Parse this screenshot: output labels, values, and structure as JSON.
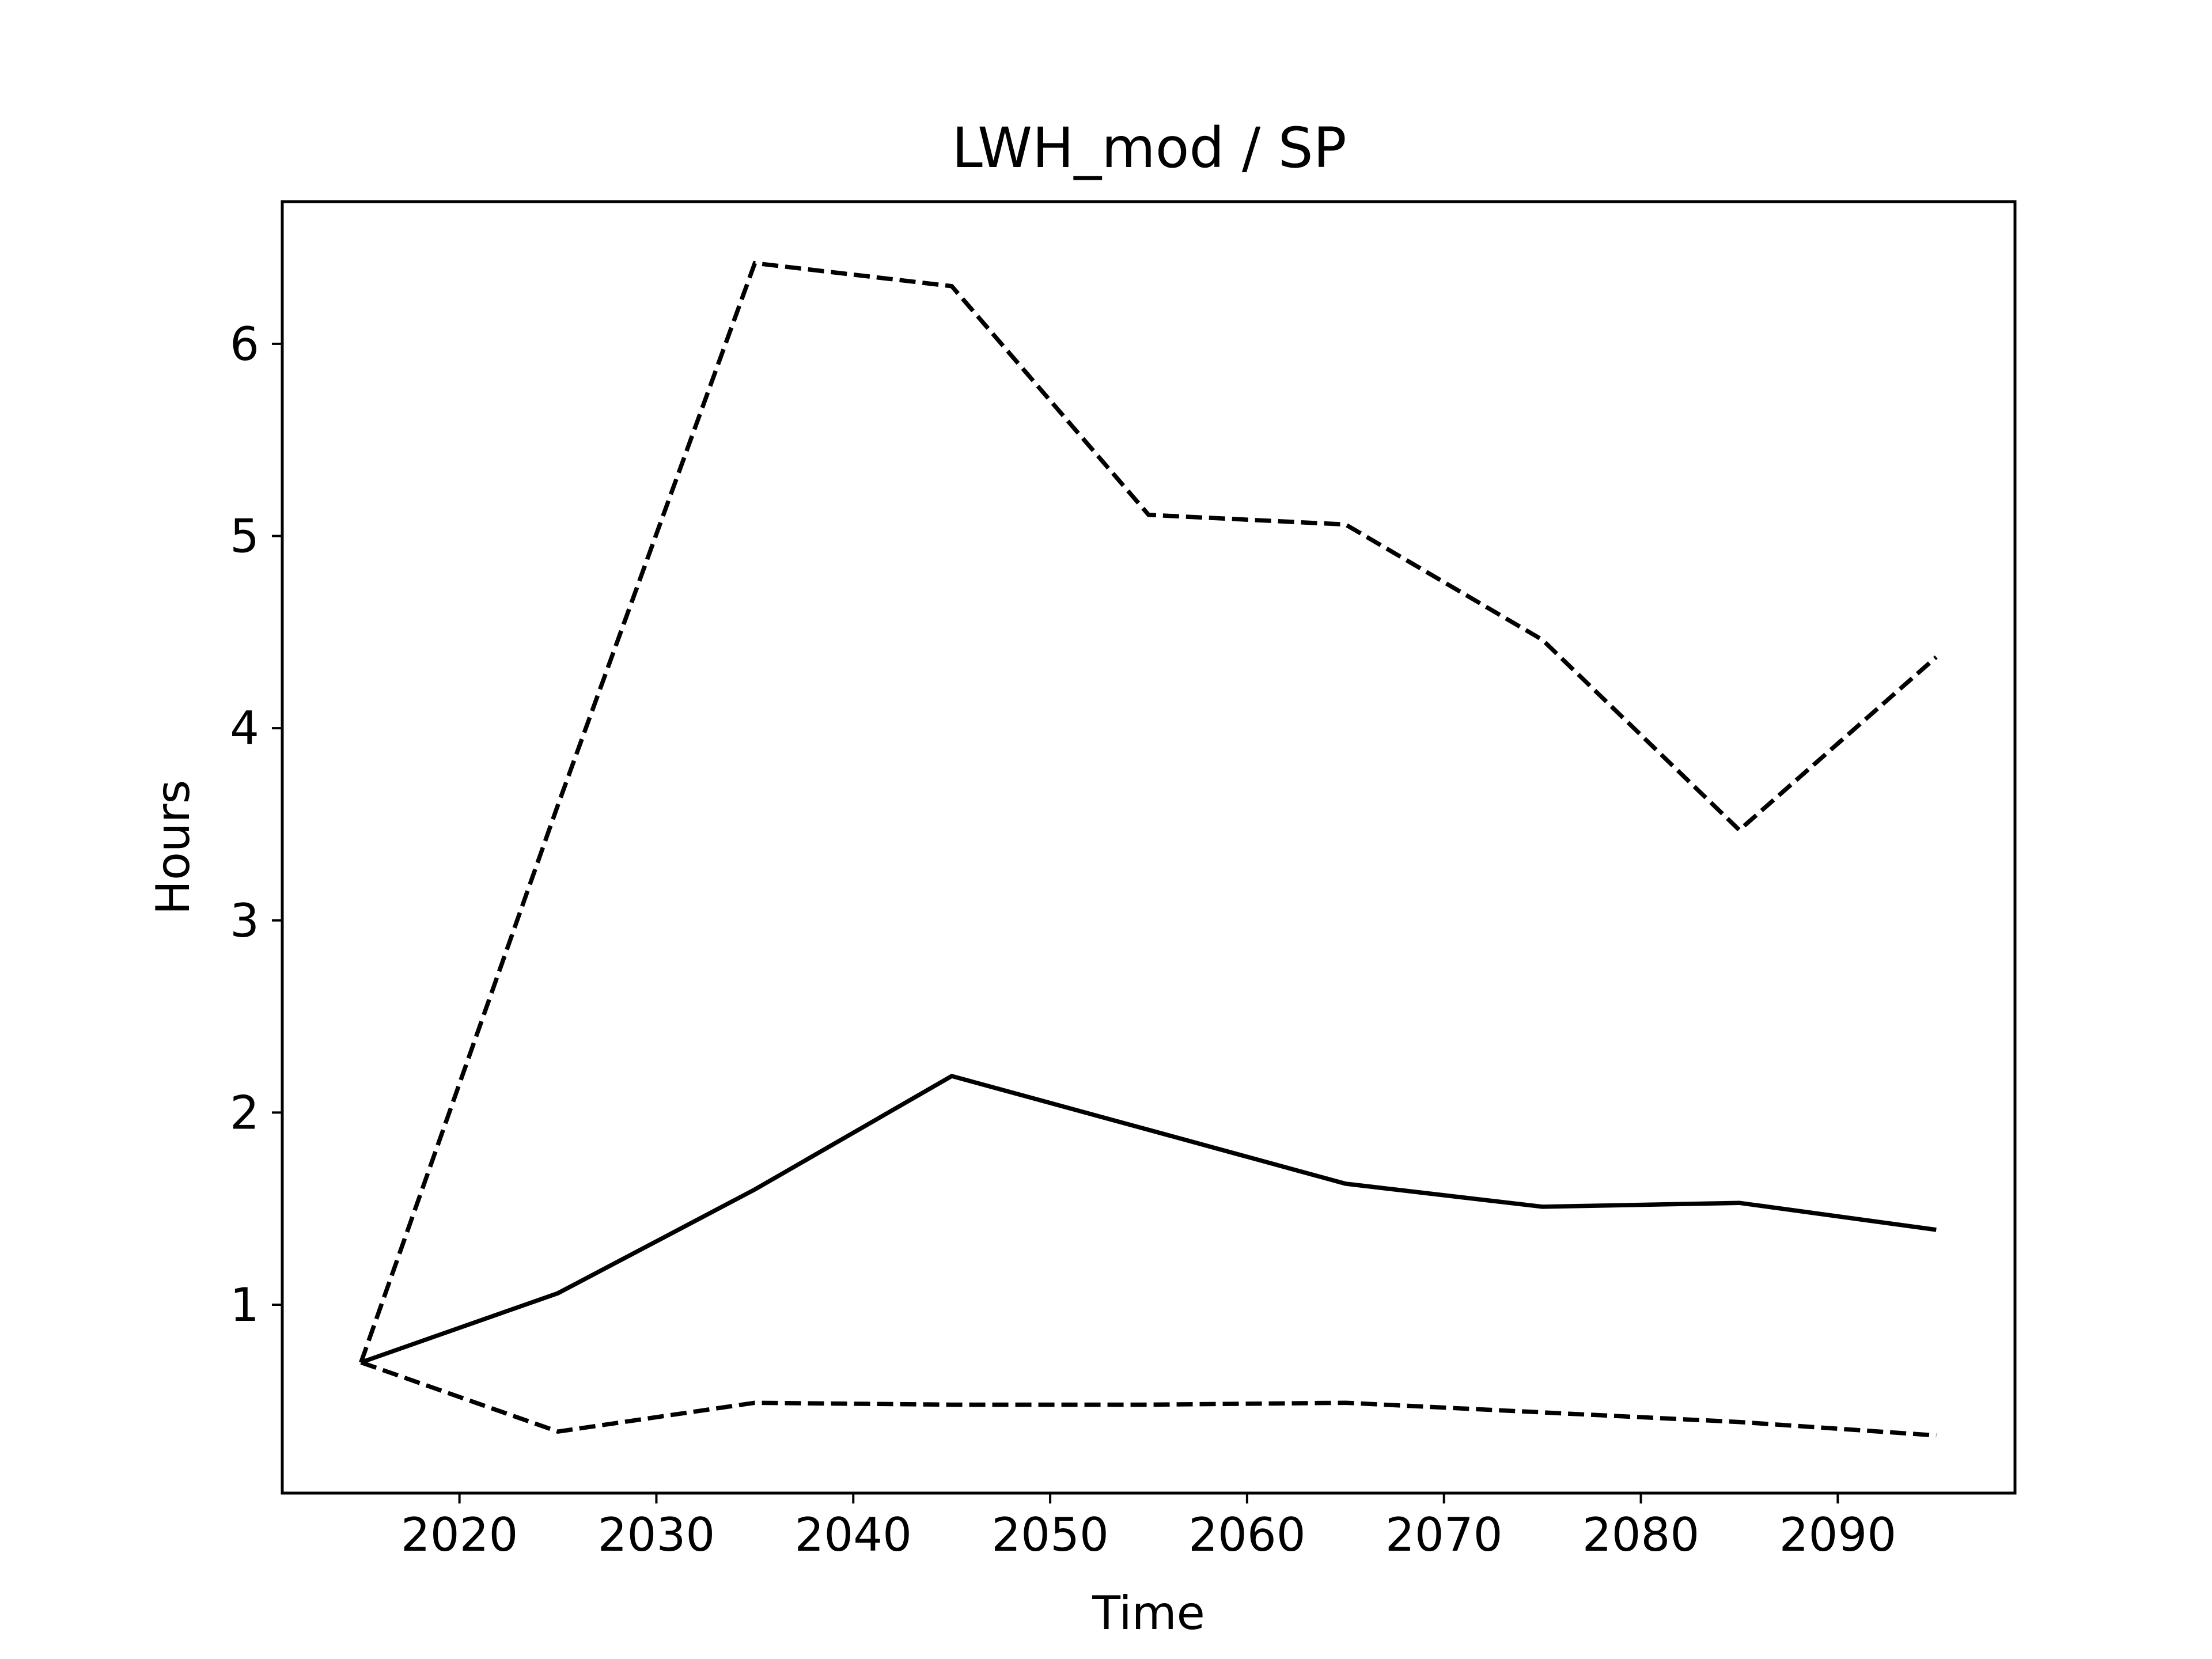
{
  "chart_data": {
    "type": "line",
    "title": "LWH_mod / SP",
    "xlabel": "Time",
    "ylabel": "Hours",
    "xlim": [
      2011,
      2099
    ],
    "ylim": [
      0.02,
      6.74
    ],
    "xticks": [
      2020,
      2030,
      2040,
      2050,
      2060,
      2070,
      2080,
      2090
    ],
    "yticks": [
      1,
      2,
      3,
      4,
      5,
      6
    ],
    "grid": false,
    "x": [
      2015,
      2025,
      2035,
      2045,
      2055,
      2065,
      2075,
      2085,
      2095
    ],
    "series": [
      {
        "style": "solid",
        "color": "#000000",
        "values": [
          0.7,
          1.06,
          1.6,
          2.19,
          1.91,
          1.63,
          1.51,
          1.53,
          1.39
        ]
      },
      {
        "style": "dashed",
        "color": "#000000",
        "values": [
          0.7,
          3.6,
          6.42,
          6.3,
          5.11,
          5.06,
          4.46,
          3.47,
          4.37
        ]
      },
      {
        "style": "dashed",
        "color": "#000000",
        "values": [
          0.7,
          0.34,
          0.49,
          0.48,
          0.48,
          0.49,
          0.44,
          0.39,
          0.32
        ]
      }
    ]
  }
}
